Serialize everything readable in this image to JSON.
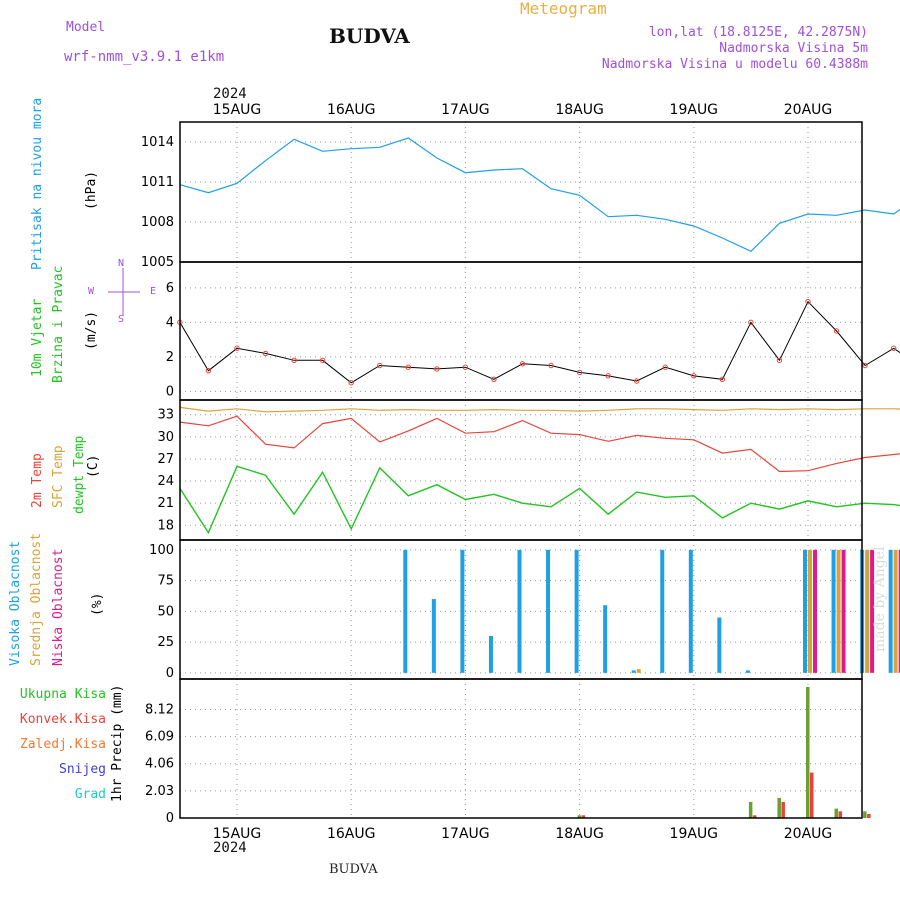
{
  "header": {
    "model_label": "Model",
    "model_name": "wrf-nmm_v3.9.1 e1km",
    "title": "BUDVA",
    "meteogram_label": "Meteogram",
    "lonlat": "lon,lat (18.8125E, 42.2875N)",
    "altitude": "Nadmorska Visina 5m",
    "model_altitude": "Nadmorska Visina u modelu 60.4388m",
    "year_top": "2024",
    "year_bottom": "2024",
    "footer": "BUDVA",
    "watermark": "made by Angel"
  },
  "colors": {
    "pressure": "#1ea0e6",
    "temp2m": "#e8443a",
    "sfc": "#d9a33c",
    "dewpt": "#22c422",
    "high_cloud": "#1ea0e6",
    "mid_cloud": "#d9a33c",
    "low_cloud": "#e01a8c",
    "total_precip": "#6aa032",
    "convective": "#e8443a",
    "freezing": "#f07a30",
    "snow": "#4040d8",
    "hail": "#20c8c8",
    "wind_label": "#22c422",
    "compass": "#a050d8"
  },
  "labels": {
    "pressure_y1": "Pritisak na nivou mora",
    "pressure_unit": "(hPa)",
    "wind_y1": "10m Vjetar",
    "wind_y2": "Brzina i Pravac",
    "wind_unit": "(m/s)",
    "compass_n": "N",
    "compass_s": "S",
    "compass_w": "W",
    "compass_e": "E",
    "temp_y1": "2m Temp",
    "temp_y2": "SFC Temp",
    "temp_y3": "dewpt Temp",
    "temp_unit": "(C)",
    "cloud_y1": "Visoka Oblacnost",
    "cloud_y2": "Srednja Oblacnost",
    "cloud_y3": "Niska  Oblacnost",
    "cloud_unit": "(%)",
    "precip_total": "Ukupna Kisa",
    "precip_conv": "Konvek.Kisa",
    "precip_freez": "Zaledj.Kisa",
    "precip_snow": "Snijeg",
    "precip_hail": "Grad",
    "precip_unit": "1hr Precip (mm)"
  },
  "chart_data": [
    {
      "type": "line",
      "name": "pressure",
      "x_start": "2024-08-14T12:00",
      "x_step_hours": 6,
      "days": [
        "15AUG",
        "16AUG",
        "17AUG",
        "18AUG",
        "19AUG",
        "20AUG"
      ],
      "ylim": [
        1005,
        1015.5
      ],
      "yticks": [
        1005,
        1008,
        1011,
        1014
      ],
      "series": [
        {
          "values": [
            1010.8,
            1010.2,
            1010.9,
            1012.6,
            1014.2,
            1013.3,
            1013.5,
            1013.6,
            1014.3,
            1012.8,
            1011.7,
            1011.9,
            1012.0,
            1010.5,
            1010.0,
            1008.4,
            1008.5,
            1008.2,
            1007.7,
            1006.8,
            1005.8,
            1007.9,
            1008.6,
            1008.5,
            1008.9,
            1008.6,
            1010.1,
            1010.4
          ]
        }
      ]
    },
    {
      "type": "line",
      "name": "wind",
      "ylim": [
        -0.5,
        7.5
      ],
      "yticks": [
        0,
        2,
        4,
        6
      ],
      "series": [
        {
          "values": [
            4.0,
            1.2,
            2.5,
            2.2,
            1.8,
            1.8,
            0.5,
            1.5,
            1.4,
            1.3,
            1.4,
            0.7,
            1.6,
            1.5,
            1.1,
            0.9,
            0.6,
            1.4,
            0.9,
            0.7,
            4.0,
            1.8,
            5.2,
            3.5,
            1.5,
            2.5,
            1.4,
            1.6
          ]
        }
      ]
    },
    {
      "type": "line",
      "name": "temperature",
      "ylim": [
        16,
        35
      ],
      "yticks": [
        18,
        21,
        24,
        27,
        30,
        33
      ],
      "series": [
        {
          "values": [
            32.0,
            31.5,
            32.8,
            29.0,
            28.5,
            31.8,
            32.5,
            29.3,
            30.8,
            32.5,
            30.5,
            30.7,
            32.2,
            30.5,
            30.3,
            29.4,
            30.2,
            29.8,
            29.6,
            27.8,
            28.3,
            25.3,
            25.4,
            26.4,
            27.2,
            27.6,
            28.0,
            28.3
          ]
        },
        {
          "values": [
            34.0,
            33.5,
            33.8,
            33.4,
            33.5,
            33.6,
            33.8,
            33.6,
            33.7,
            33.6,
            33.6,
            33.7,
            33.6,
            33.6,
            33.5,
            33.6,
            33.8,
            33.8,
            33.7,
            33.6,
            33.8,
            33.7,
            33.8,
            33.7,
            33.8,
            33.8,
            33.7,
            33.8
          ]
        },
        {
          "values": [
            23.0,
            17.0,
            26.0,
            24.8,
            19.5,
            25.2,
            17.5,
            25.8,
            22.0,
            23.5,
            21.5,
            22.2,
            21.0,
            20.5,
            23.0,
            19.5,
            22.5,
            21.8,
            22.0,
            19.0,
            21.0,
            20.2,
            21.3,
            20.5,
            21.0,
            20.8,
            20.2,
            20.6
          ]
        }
      ]
    },
    {
      "type": "bar",
      "name": "clouds",
      "ylim": [
        -5,
        108
      ],
      "yticks": [
        0,
        25,
        50,
        75,
        100
      ],
      "series": [
        {
          "values": [
            0,
            0,
            0,
            0,
            0,
            0,
            0,
            0,
            100,
            60,
            100,
            30,
            100,
            100,
            100,
            55,
            2,
            100,
            100,
            45,
            2,
            0,
            100,
            100,
            100,
            100,
            100,
            95
          ]
        },
        {
          "values": [
            0,
            0,
            0,
            0,
            0,
            0,
            0,
            0,
            0,
            0,
            0,
            0,
            0,
            0,
            0,
            0,
            3,
            0,
            0,
            0,
            0,
            0,
            100,
            100,
            100,
            100,
            100,
            100
          ]
        },
        {
          "values": [
            0,
            0,
            0,
            0,
            0,
            0,
            0,
            0,
            0,
            0,
            0,
            0,
            0,
            0,
            0,
            0,
            0,
            0,
            0,
            0,
            0,
            0,
            100,
            100,
            100,
            100,
            100,
            0
          ]
        }
      ]
    },
    {
      "type": "bar",
      "name": "precipitation",
      "ylim": [
        0,
        10.4
      ],
      "yticks": [
        0,
        2.03,
        4.06,
        6.09,
        8.12
      ],
      "series": [
        {
          "values": [
            0,
            0,
            0,
            0,
            0,
            0,
            0,
            0,
            0,
            0,
            0,
            0,
            0,
            0,
            0.2,
            0,
            0,
            0,
            0,
            0,
            1.2,
            1.5,
            9.8,
            0.7,
            0.5,
            0,
            0,
            0
          ]
        },
        {
          "values": [
            0,
            0,
            0,
            0,
            0,
            0,
            0,
            0,
            0,
            0,
            0,
            0,
            0,
            0,
            0.2,
            0,
            0,
            0,
            0,
            0,
            0.2,
            1.2,
            3.4,
            0.5,
            0.3,
            0,
            0,
            0
          ]
        }
      ]
    }
  ]
}
